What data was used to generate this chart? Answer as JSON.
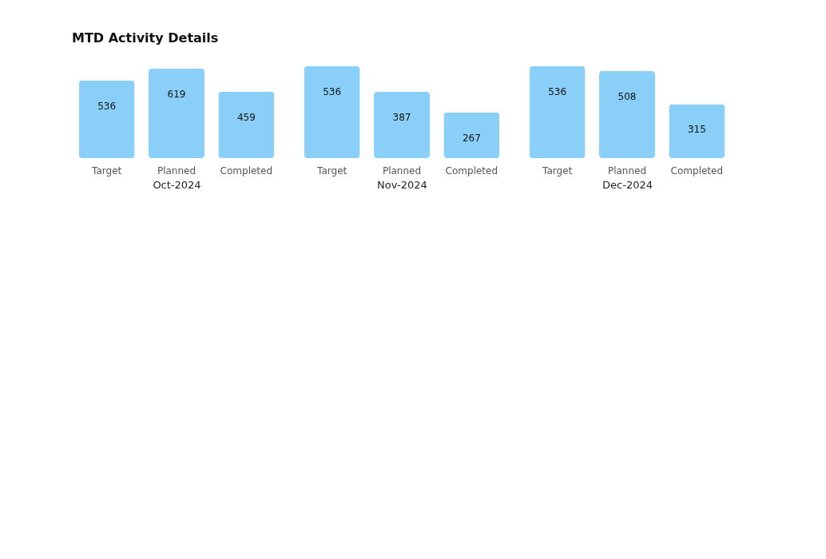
{
  "chart_data": [
    {
      "type": "bar",
      "title": "MTD Activity Details",
      "xlabel": "Oct-2024",
      "categories": [
        "Target",
        "Planned",
        "Completed"
      ],
      "values": [
        536,
        619,
        459
      ],
      "color": "#89cff8",
      "data_labels": true,
      "tick_labels": "x"
    },
    {
      "type": "bar",
      "xlabel": "Nov-2024",
      "categories": [
        "Target",
        "Planned",
        "Completed"
      ],
      "values": [
        536,
        387,
        267
      ],
      "color": "#89cff8",
      "data_labels": true,
      "tick_labels": "x"
    },
    {
      "type": "bar",
      "xlabel": "Dec-2024",
      "categories": [
        "Target",
        "Planned",
        "Completed"
      ],
      "values": [
        536,
        508,
        315
      ],
      "color": "#89cff8",
      "data_labels": true,
      "tick_labels": "x"
    }
  ]
}
